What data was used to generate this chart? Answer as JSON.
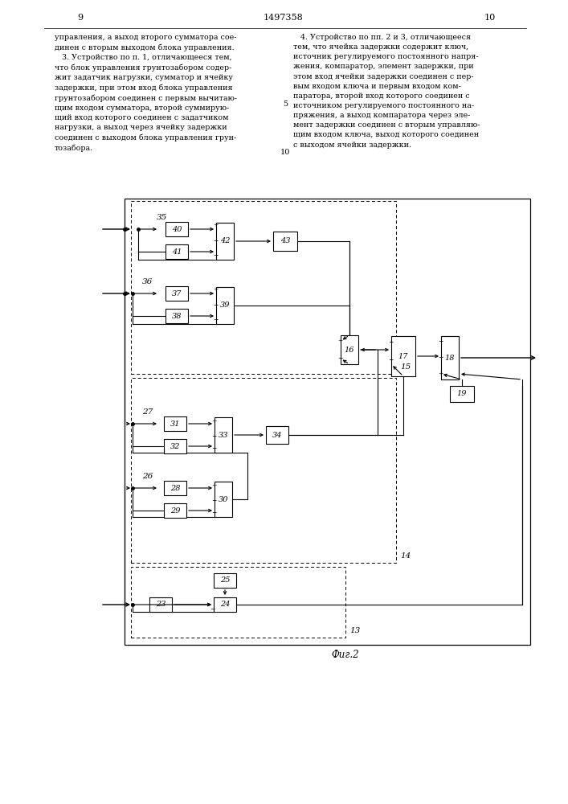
{
  "title": "Фиг.2",
  "background_color": "#ffffff",
  "line_color": "#000000",
  "text_color": "#000000",
  "figsize": [
    7.07,
    10.0
  ],
  "dpi": 100,
  "text_left": "управления, а выход второго сумматора сое-\nдинен с вторым выходом блока управления.\n   3. Устройство по п. 1, отличающееся тем,\nчто блок управления грунтозабором содер-\nжит задатчик нагрузки, сумматор и ячейку\nзадержки, при этом вход блока управления\nгрунтозабором соединен с первым вычитаю-\nщим входом сумматора, второй суммирую-\nщий вход которого соединен с задатчиком\nнагрузки, а выход через ячейку задержки\nсоединен с выходом блока управления грун-\nтозабора.",
  "text_right": "   4. Устройство по пп. 2 и 3, отличающееся\nтем, что ячейка задержки содержит ключ,\nисточник регулируемого постоянного напря-\nжения, компаратор, элемент задержки, при\nэтом вход ячейки задержки соединен с пер-\nвым входом ключа и первым входом ком-\nпаратора, второй вход которого соединен с\nисточником регулируемого постоянного на-\nпряжения, а выход компаратора через эле-\nмент задержки соединен с вторым управляю-\nщим входом ключа, выход которого соединен\nс выходом ячейки задержки.",
  "line_number_5": "5",
  "line_number_10": "10"
}
